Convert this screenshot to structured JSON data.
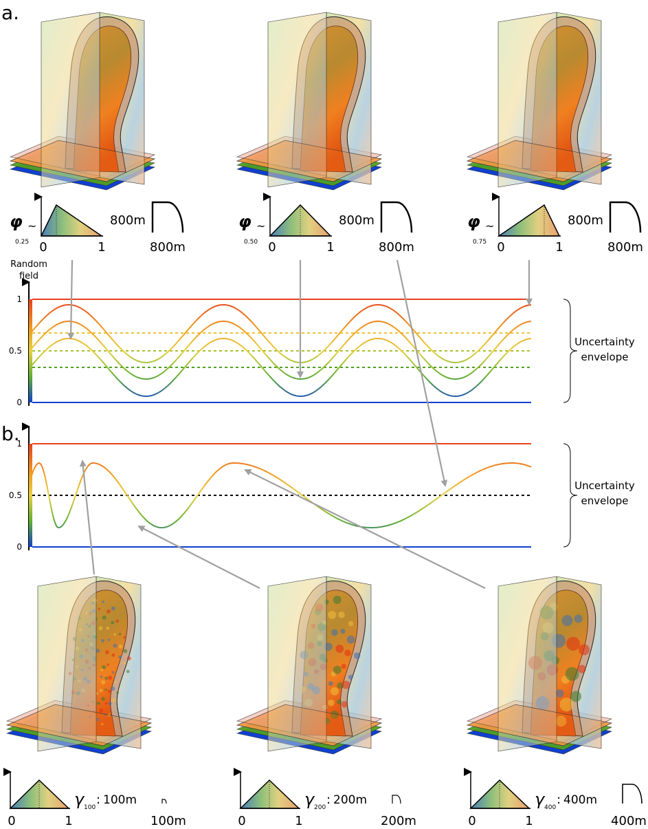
{
  "panel_a": {
    "label": "a.",
    "items": [
      {
        "symbol": "φ",
        "subscript": "0.25",
        "relation": "~",
        "scale_min": "0",
        "scale_max": "1",
        "height": "800m",
        "width": "800m"
      },
      {
        "symbol": "φ",
        "subscript": "0.50",
        "relation": "~",
        "scale_min": "0",
        "scale_max": "1",
        "height": "800m",
        "width": "800m"
      },
      {
        "symbol": "φ",
        "subscript": "0.75",
        "relation": "~",
        "scale_min": "0",
        "scale_max": "1",
        "height": "800m",
        "width": "800m"
      }
    ]
  },
  "plot_a": {
    "axis_title": [
      "Random",
      "field"
    ],
    "yticks": [
      "1",
      "0.5",
      "0"
    ],
    "annotation": [
      "Uncertainty",
      "envelope"
    ]
  },
  "panel_b": {
    "label": "b.",
    "items": [
      {
        "symbol": "γ",
        "subscript": "100",
        "relation": ":",
        "height": "100m",
        "scale_min": "0",
        "scale_max": "1",
        "width": "100m"
      },
      {
        "symbol": "γ",
        "subscript": "200",
        "relation": ":",
        "height": "200m",
        "scale_min": "0",
        "scale_max": "1",
        "width": "200m"
      },
      {
        "symbol": "γ",
        "subscript": "400",
        "relation": ":",
        "height": "400m",
        "scale_min": "0",
        "scale_max": "1",
        "width": "400m"
      }
    ]
  },
  "plot_b": {
    "yticks": [
      "1",
      "0.5",
      "0"
    ],
    "annotation": [
      "Uncertainty",
      "envelope"
    ]
  }
}
